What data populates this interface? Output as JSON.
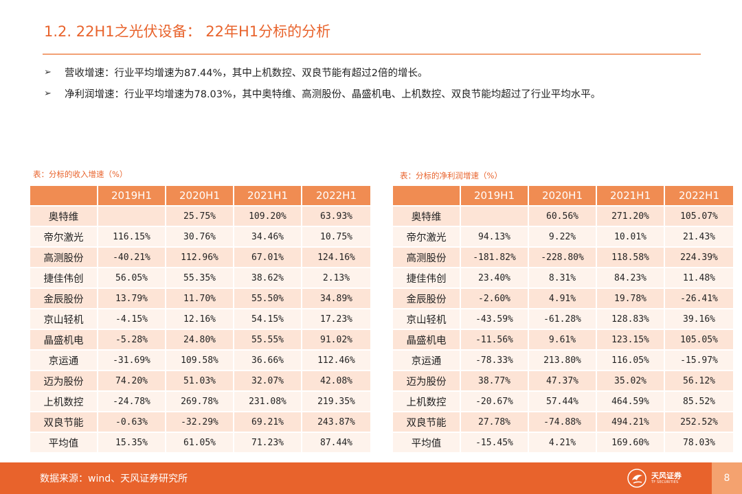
{
  "page": {
    "title": "1.2. 22H1之光伏设备： 22年H1分标的分析",
    "bullets": [
      {
        "arrow": "➢",
        "lead": "营收增速：",
        "text": "行业平均增速为87.44%，其中上机数控、双良节能有超过2倍的增长。"
      },
      {
        "arrow": "➢",
        "lead": "净利润增速：",
        "text": "行业平均增速为78.03%，其中奥特维、高测股份、晶盛机电、上机数控、双良节能均超过了行业平均水平。"
      }
    ],
    "source": "数据来源：wind、天风证券研究所",
    "page_number": "8",
    "logo": {
      "cn": "天风证券",
      "en": "TF SECURITIES"
    }
  },
  "tables": {
    "revenue": {
      "caption": "表：分标的收入增速（%）",
      "headers": [
        "",
        "2019H1",
        "2020H1",
        "2021H1",
        "2022H1"
      ],
      "rows": [
        [
          "奥特维",
          "",
          "25.75%",
          "109.20%",
          "63.93%"
        ],
        [
          "帝尔激光",
          "116.15%",
          "30.76%",
          "34.46%",
          "10.75%"
        ],
        [
          "高测股份",
          "-40.21%",
          "112.96%",
          "67.01%",
          "124.16%"
        ],
        [
          "捷佳伟创",
          "56.05%",
          "55.35%",
          "38.62%",
          "2.13%"
        ],
        [
          "金辰股份",
          "13.79%",
          "11.70%",
          "55.50%",
          "34.89%"
        ],
        [
          "京山轻机",
          "-4.15%",
          "12.16%",
          "54.15%",
          "17.23%"
        ],
        [
          "晶盛机电",
          "-5.28%",
          "24.80%",
          "55.55%",
          "91.02%"
        ],
        [
          "京运通",
          "-31.69%",
          "109.58%",
          "36.66%",
          "112.46%"
        ],
        [
          "迈为股份",
          "74.20%",
          "51.03%",
          "32.07%",
          "42.08%"
        ],
        [
          "上机数控",
          "-24.78%",
          "269.78%",
          "231.08%",
          "219.35%"
        ],
        [
          "双良节能",
          "-0.63%",
          "-32.29%",
          "69.21%",
          "243.87%"
        ],
        [
          "平均值",
          "15.35%",
          "61.05%",
          "71.23%",
          "87.44%"
        ]
      ]
    },
    "profit": {
      "caption": "表：分标的净利润增速（%）",
      "headers": [
        "",
        "2019H1",
        "2020H1",
        "2021H1",
        "2022H1"
      ],
      "rows": [
        [
          "奥特维",
          "",
          "60.56%",
          "271.20%",
          "105.07%"
        ],
        [
          "帝尔激光",
          "94.13%",
          "9.22%",
          "10.01%",
          "21.43%"
        ],
        [
          "高测股份",
          "-181.82%",
          "-228.80%",
          "118.58%",
          "224.39%"
        ],
        [
          "捷佳伟创",
          "23.40%",
          "8.31%",
          "84.23%",
          "11.48%"
        ],
        [
          "金辰股份",
          "-2.60%",
          "4.91%",
          "19.78%",
          "-26.41%"
        ],
        [
          "京山轻机",
          "-43.59%",
          "-61.28%",
          "128.83%",
          "39.16%"
        ],
        [
          "晶盛机电",
          "-11.56%",
          "9.61%",
          "123.15%",
          "105.05%"
        ],
        [
          "京运通",
          "-78.33%",
          "213.80%",
          "116.05%",
          "-15.97%"
        ],
        [
          "迈为股份",
          "38.77%",
          "47.37%",
          "35.02%",
          "56.12%"
        ],
        [
          "上机数控",
          "-20.67%",
          "57.44%",
          "464.59%",
          "85.52%"
        ],
        [
          "双良节能",
          "27.78%",
          "-74.88%",
          "494.21%",
          "252.52%"
        ],
        [
          "平均值",
          "-15.45%",
          "4.21%",
          "169.60%",
          "78.03%"
        ]
      ]
    }
  }
}
